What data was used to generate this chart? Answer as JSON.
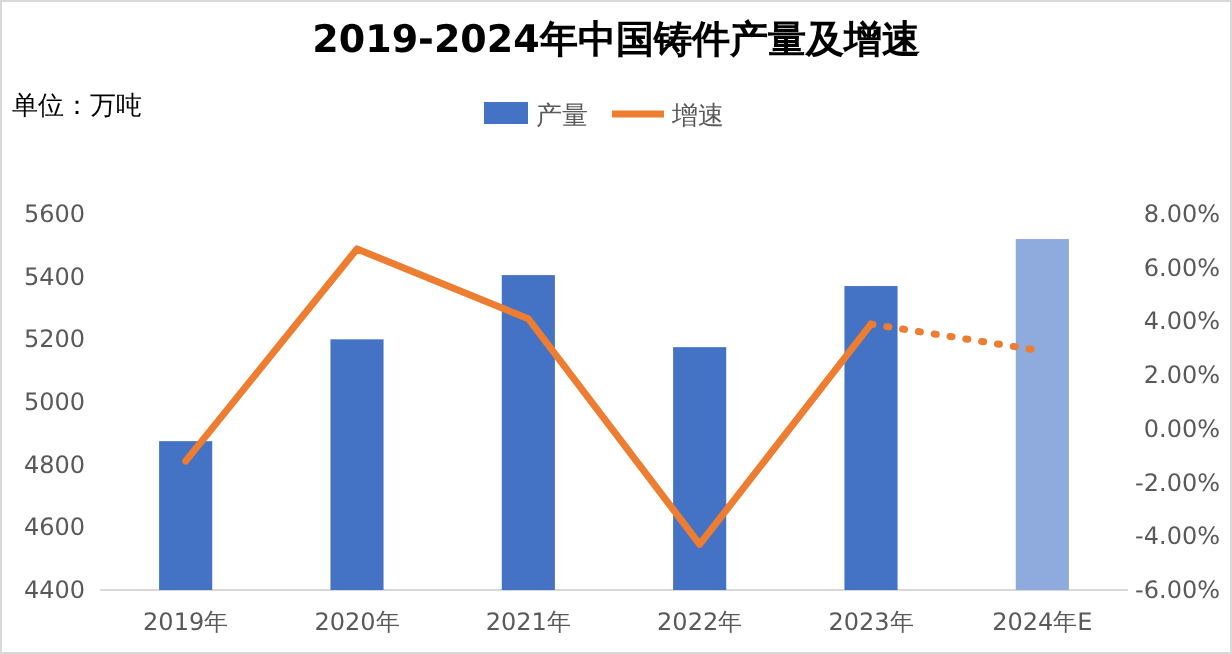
{
  "chart_data": {
    "type": "bar",
    "title": "2019-2024年中国铸件产量及增速",
    "annotations": [
      "单位：万吨"
    ],
    "categories": [
      "2019年",
      "2020年",
      "2021年",
      "2022年",
      "2023年",
      "2024年E"
    ],
    "series": [
      {
        "name": "产量",
        "colors": [
          "#4472c4",
          "#4472c4",
          "#4472c4",
          "#4472c4",
          "#4472c4",
          "#8faadc"
        ],
        "values": [
          4875,
          5200,
          5405,
          5175,
          5370,
          5520
        ]
      },
      {
        "name": "增速",
        "type": "line",
        "axis": "y2",
        "color": "#ed7d31",
        "values": [
          -1.2,
          6.7,
          4.1,
          -4.3,
          3.9,
          null
        ]
      },
      {
        "type": "line",
        "axis": "y2",
        "color": "#ed7d31",
        "line_style": "dotted",
        "values": [
          null,
          null,
          null,
          null,
          3.9,
          2.9
        ]
      }
    ],
    "ylim": [
      4400,
      5600
    ],
    "yticks": [
      4400,
      4600,
      4800,
      5000,
      5200,
      5400,
      5600
    ],
    "y2lim": [
      -6,
      8
    ],
    "y2ticks": [
      {
        "value": -6,
        "label": "-6.00%"
      },
      {
        "value": -4,
        "label": "-4.00%"
      },
      {
        "value": -2,
        "label": "-2.00%"
      },
      {
        "value": 0,
        "label": "0.00%"
      },
      {
        "value": 2,
        "label": "2.00%"
      },
      {
        "value": 4,
        "label": "4.00%"
      },
      {
        "value": 6,
        "label": "6.00%"
      },
      {
        "value": 8,
        "label": "8.00%"
      }
    ],
    "legend": "top"
  }
}
